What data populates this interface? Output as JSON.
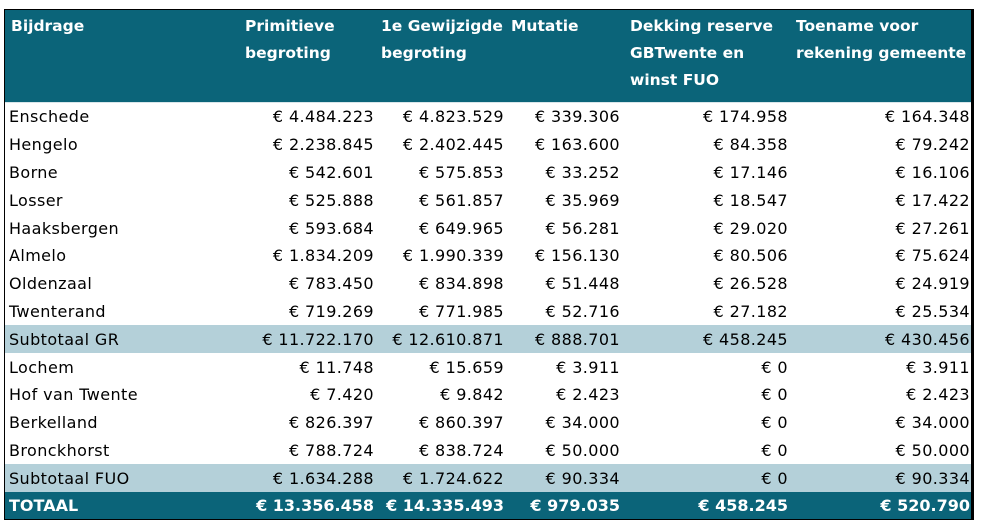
{
  "table": {
    "headers": [
      "Bijdrage",
      "Primitieve begroting",
      "1e Gewijzigde begroting",
      "Mutatie",
      "Dekking reserve GBTwente en winst FUO",
      "Toename voor rekening gemeente"
    ],
    "rows": [
      {
        "type": "row",
        "cells": [
          "Enschede",
          "€ 4.484.223",
          "€ 4.823.529",
          "€ 339.306",
          "€ 174.958",
          "€ 164.348"
        ]
      },
      {
        "type": "row",
        "cells": [
          "Hengelo",
          "€ 2.238.845",
          "€ 2.402.445",
          "€ 163.600",
          "€ 84.358",
          "€ 79.242"
        ]
      },
      {
        "type": "row",
        "cells": [
          "Borne",
          "€ 542.601",
          "€ 575.853",
          "€ 33.252",
          "€ 17.146",
          "€ 16.106"
        ]
      },
      {
        "type": "row",
        "cells": [
          "Losser",
          "€ 525.888",
          "€ 561.857",
          "€ 35.969",
          "€ 18.547",
          "€ 17.422"
        ]
      },
      {
        "type": "row",
        "cells": [
          "Haaksbergen",
          "€ 593.684",
          "€ 649.965",
          "€ 56.281",
          "€ 29.020",
          "€ 27.261"
        ]
      },
      {
        "type": "row",
        "cells": [
          "Almelo",
          "€ 1.834.209",
          "€ 1.990.339",
          "€ 156.130",
          "€ 80.506",
          "€ 75.624"
        ]
      },
      {
        "type": "row",
        "cells": [
          "Oldenzaal",
          "€ 783.450",
          "€ 834.898",
          "€ 51.448",
          "€ 26.528",
          "€ 24.919"
        ]
      },
      {
        "type": "row",
        "cells": [
          "Twenterand",
          "€ 719.269",
          "€ 771.985",
          "€ 52.716",
          "€ 27.182",
          "€ 25.534"
        ]
      },
      {
        "type": "subtotal",
        "cells": [
          "Subtotaal GR",
          "€ 11.722.170",
          "€ 12.610.871",
          "€ 888.701",
          "€ 458.245",
          "€ 430.456"
        ]
      },
      {
        "type": "row",
        "cells": [
          "Lochem",
          "€ 11.748",
          "€ 15.659",
          "€ 3.911",
          "€ 0",
          "€ 3.911"
        ]
      },
      {
        "type": "row",
        "cells": [
          "Hof van Twente",
          "€ 7.420",
          "€ 9.842",
          "€ 2.423",
          "€ 0",
          "€ 2.423"
        ]
      },
      {
        "type": "row",
        "cells": [
          "Berkelland",
          "€ 826.397",
          "€ 860.397",
          "€ 34.000",
          "€ 0",
          "€ 34.000"
        ]
      },
      {
        "type": "row",
        "cells": [
          "Bronckhorst",
          "€ 788.724",
          "€ 838.724",
          "€ 50.000",
          "€ 0",
          "€ 50.000"
        ]
      },
      {
        "type": "subtotal",
        "cells": [
          "Subtotaal FUO",
          "€ 1.634.288",
          "€ 1.724.622",
          "€ 90.334",
          "€ 0",
          "€ 90.334"
        ]
      },
      {
        "type": "total",
        "cells": [
          "TOTAAL",
          "€ 13.356.458",
          "€ 14.335.493",
          "€ 979.035",
          "€ 458.245",
          "€ 520.790"
        ]
      }
    ]
  },
  "colors": {
    "header_bg": "#0b6479",
    "subtotal_bg": "#b4d0d9",
    "total_bg": "#0b6479"
  }
}
